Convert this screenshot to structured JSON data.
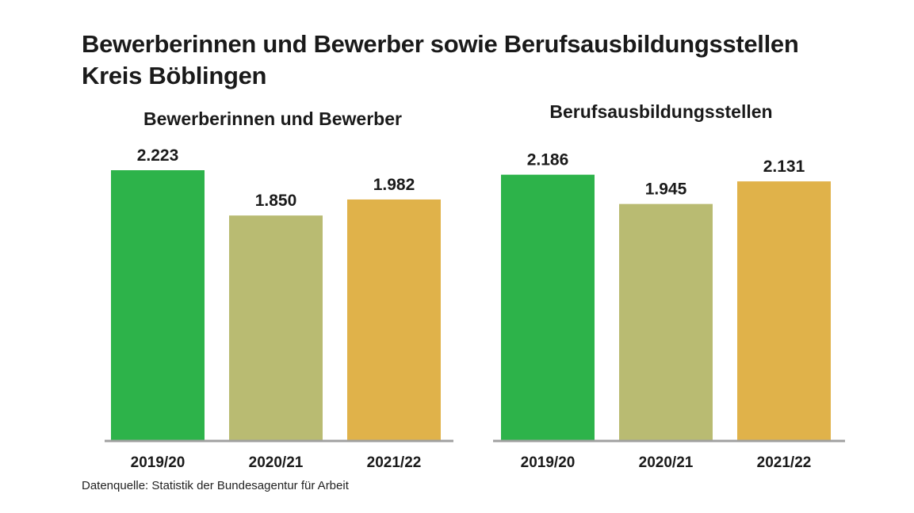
{
  "title": {
    "line1": "Bewerberinnen und Bewerber sowie Berufsausbildungsstellen",
    "line2": "Kreis Böblingen"
  },
  "source": "Datenquelle: Statistik der Bundesagentur für Arbeit",
  "colors": {
    "2019/20": "#2db34a",
    "2020/21": "#b9bb72",
    "2021/22": "#e0b24a",
    "baseline": "#a0a0a0"
  },
  "chart_data": [
    {
      "type": "bar",
      "title": "Bewerberinnen und Bewerber",
      "categories": [
        "2019/20",
        "2020/21",
        "2021/22"
      ],
      "values": [
        2223,
        1850,
        1982
      ],
      "value_labels": [
        "2.223",
        "1.850",
        "1.982"
      ],
      "ylim": [
        0,
        2500
      ],
      "grid": false
    },
    {
      "type": "bar",
      "title": "Berufsausbildungsstellen",
      "categories": [
        "2019/20",
        "2020/21",
        "2021/22"
      ],
      "values": [
        2186,
        1945,
        2131
      ],
      "value_labels": [
        "2.186",
        "1.945",
        "2.131"
      ],
      "ylim": [
        0,
        2500
      ],
      "grid": false
    }
  ]
}
